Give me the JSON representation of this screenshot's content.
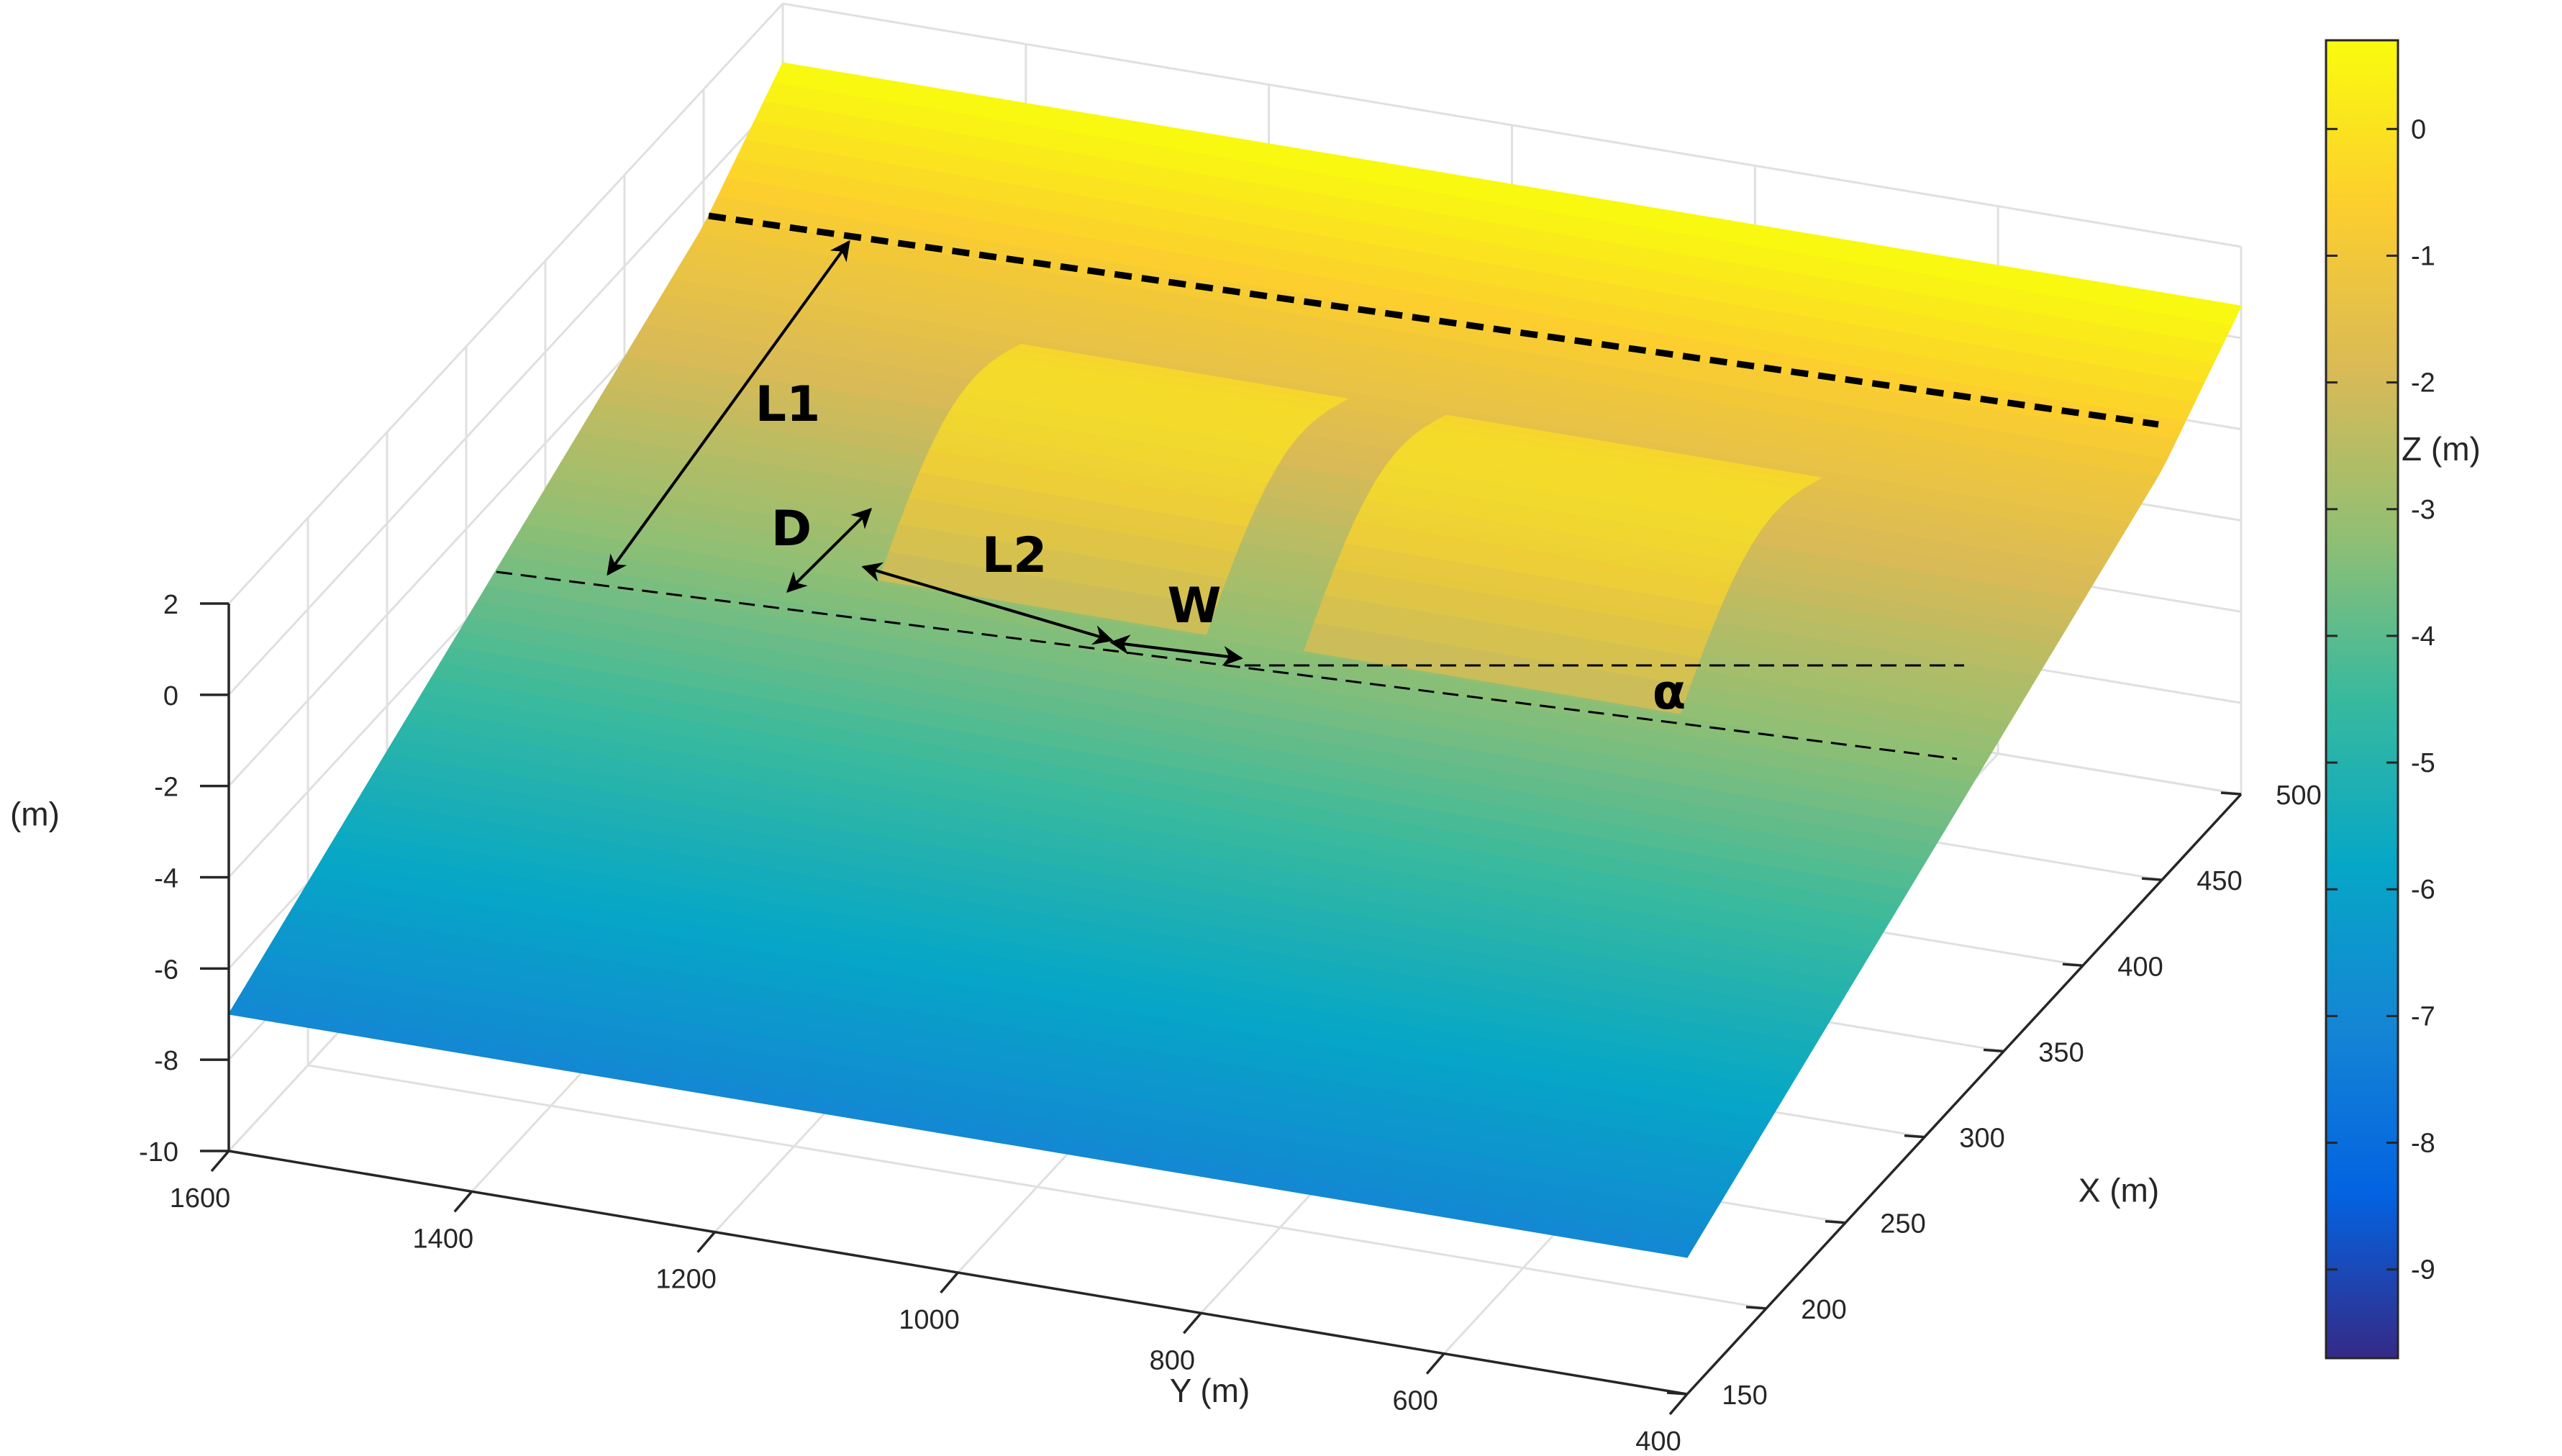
{
  "chart_data": {
    "type": "surface",
    "title": "",
    "xlabel": "X (m)",
    "ylabel": "Y (m)",
    "zlabel": "Z (m)",
    "colorbar_label": "Z (m)",
    "colormap": "parula",
    "xlim": [
      150,
      500
    ],
    "ylim": [
      400,
      1600
    ],
    "zlim": [
      -10,
      2
    ],
    "clim": [
      -9.7,
      0.7
    ],
    "grid": true,
    "x_ticks": [
      "150",
      "200",
      "250",
      "300",
      "350",
      "400",
      "450",
      "500"
    ],
    "y_ticks": [
      "400",
      "600",
      "800",
      "1000",
      "1200",
      "1400",
      "1600"
    ],
    "z_ticks": [
      "-10",
      "-8",
      "-6",
      "-4",
      "-2",
      "0",
      "2"
    ],
    "colorbar_ticks": [
      "0",
      "-1",
      "-2",
      "-3",
      "-4",
      "-5",
      "-6",
      "-7",
      "-8",
      "-9"
    ],
    "surface": {
      "description_values": {
        "offshore_edge_x": 150,
        "offshore_depth": -7,
        "shoreline_x": 500,
        "shoreline_elevation": 0.7
      },
      "x": [
        150,
        200,
        250,
        300,
        350,
        400,
        450,
        500
      ],
      "y_range": [
        400,
        1600
      ],
      "bathymetry_profile_z": [
        -7.0,
        -6.0,
        -5.0,
        -4.0,
        -3.0,
        -2.0,
        -1.0,
        0.7
      ]
    },
    "annotations": [
      "L1",
      "D",
      "L2",
      "W",
      "α"
    ]
  }
}
